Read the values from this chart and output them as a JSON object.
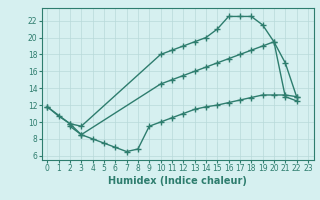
{
  "line1_x": [
    0,
    1,
    2,
    3,
    10,
    11,
    12,
    13,
    14,
    15,
    16,
    17,
    18,
    19,
    20,
    21,
    22
  ],
  "line1_y": [
    11.8,
    10.7,
    9.8,
    9.5,
    18.0,
    18.5,
    19.0,
    19.5,
    20.0,
    21.0,
    22.5,
    22.5,
    22.5,
    21.5,
    19.5,
    17.0,
    13.0
  ],
  "line2_x": [
    2,
    3,
    10,
    11,
    12,
    13,
    14,
    15,
    16,
    17,
    18,
    19,
    20,
    21,
    22
  ],
  "line2_y": [
    9.5,
    8.5,
    14.5,
    15.0,
    15.5,
    16.0,
    16.5,
    17.0,
    17.5,
    18.0,
    18.5,
    19.0,
    19.5,
    13.0,
    12.5
  ],
  "line3_x": [
    0,
    2,
    3,
    4,
    5,
    6,
    7,
    8,
    9,
    10,
    11,
    12,
    13,
    14,
    15,
    16,
    17,
    18,
    19,
    20,
    21,
    22
  ],
  "line3_y": [
    11.8,
    9.8,
    8.5,
    8.0,
    7.5,
    7.0,
    6.5,
    6.8,
    9.5,
    10.0,
    10.5,
    11.0,
    11.5,
    11.8,
    12.0,
    12.3,
    12.6,
    12.9,
    13.2,
    13.2,
    13.2,
    13.0
  ],
  "color": "#2e7d6e",
  "bg_color": "#d6f0f0",
  "grid_color": "#b8dada",
  "xlabel": "Humidex (Indice chaleur)",
  "xlim": [
    -0.5,
    23.5
  ],
  "ylim": [
    5.5,
    23.5
  ],
  "xticks": [
    0,
    1,
    2,
    3,
    4,
    5,
    6,
    7,
    8,
    9,
    10,
    11,
    12,
    13,
    14,
    15,
    16,
    17,
    18,
    19,
    20,
    21,
    22,
    23
  ],
  "yticks": [
    6,
    8,
    10,
    12,
    14,
    16,
    18,
    20,
    22
  ],
  "marker": "+",
  "markersize": 4,
  "linewidth": 1.0,
  "xlabel_fontsize": 7,
  "tick_fontsize": 5.5
}
